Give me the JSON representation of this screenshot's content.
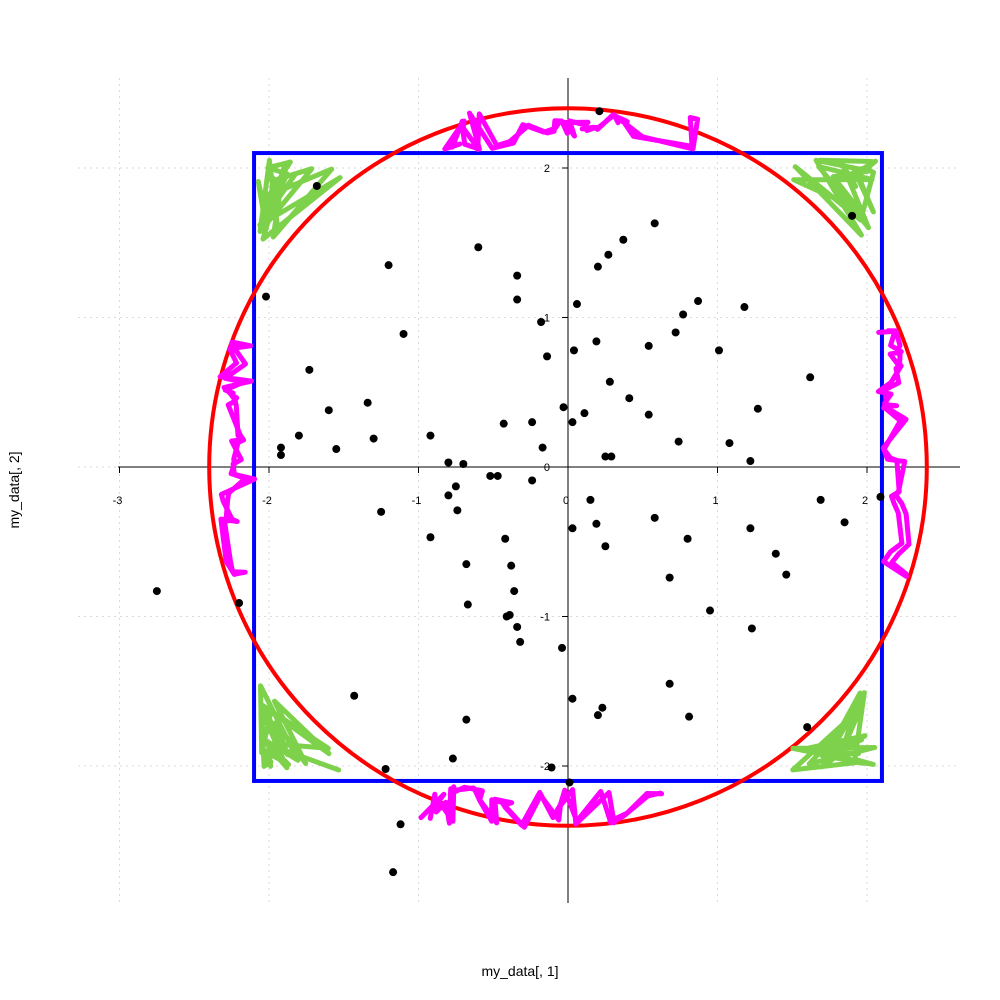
{
  "chart_data": {
    "type": "scatter",
    "title": "",
    "xlabel": "my_data[, 1]",
    "ylabel": "my_data[, 2]",
    "xlim": [
      -3,
      2.6
    ],
    "ylim": [
      -2.9,
      2.6
    ],
    "grid": true,
    "x_ticks": [
      -3,
      -2,
      -1,
      0,
      1,
      2
    ],
    "y_ticks": [
      -2,
      -1,
      0,
      1,
      2
    ],
    "x_tick_labels": [
      "-3",
      "-2",
      "-1",
      "0",
      "1",
      "2"
    ],
    "y_tick_labels": [
      "-2",
      "-1",
      "0",
      "1",
      "2"
    ],
    "colors": {
      "points": "#000000",
      "square": "#0000ff",
      "circle": "#ff0000",
      "corners": "#7ed14a",
      "edges": "#ff00ff",
      "grid": "#d9d9d9"
    },
    "square": {
      "half_side": 2.1
    },
    "circle": {
      "radius": 2.4
    },
    "points": [
      [
        0.21,
        2.38
      ],
      [
        -1.68,
        1.88
      ],
      [
        1.9,
        1.68
      ],
      [
        0.58,
        1.63
      ],
      [
        0.37,
        1.52
      ],
      [
        -0.6,
        1.47
      ],
      [
        0.27,
        1.42
      ],
      [
        0.2,
        1.34
      ],
      [
        -1.2,
        1.35
      ],
      [
        -0.34,
        1.28
      ],
      [
        -2.02,
        1.14
      ],
      [
        -0.34,
        1.12
      ],
      [
        0.06,
        1.09
      ],
      [
        0.87,
        1.11
      ],
      [
        1.18,
        1.07
      ],
      [
        0.77,
        1.02
      ],
      [
        -0.18,
        0.97
      ],
      [
        0.72,
        0.9
      ],
      [
        -1.1,
        0.89
      ],
      [
        0.19,
        0.84
      ],
      [
        0.54,
        0.81
      ],
      [
        0.04,
        0.78
      ],
      [
        1.01,
        0.78
      ],
      [
        -0.14,
        0.74
      ],
      [
        -1.73,
        0.65
      ],
      [
        1.62,
        0.6
      ],
      [
        0.28,
        0.57
      ],
      [
        0.41,
        0.46
      ],
      [
        -1.34,
        0.43
      ],
      [
        1.27,
        0.39
      ],
      [
        -1.6,
        0.38
      ],
      [
        -0.03,
        0.4
      ],
      [
        0.11,
        0.36
      ],
      [
        0.54,
        0.35
      ],
      [
        -0.24,
        0.3
      ],
      [
        -0.43,
        0.29
      ],
      [
        0.03,
        0.3
      ],
      [
        -1.8,
        0.21
      ],
      [
        -0.92,
        0.21
      ],
      [
        -1.3,
        0.19
      ],
      [
        0.74,
        0.17
      ],
      [
        1.08,
        0.16
      ],
      [
        -1.92,
        0.13
      ],
      [
        -1.55,
        0.12
      ],
      [
        -0.17,
        0.13
      ],
      [
        -1.92,
        0.08
      ],
      [
        0.25,
        0.07
      ],
      [
        0.29,
        0.07
      ],
      [
        1.22,
        0.04
      ],
      [
        -0.8,
        0.03
      ],
      [
        -0.7,
        0.02
      ],
      [
        -0.52,
        -0.06
      ],
      [
        -0.47,
        -0.06
      ],
      [
        -0.24,
        -0.09
      ],
      [
        -0.75,
        -0.13
      ],
      [
        -0.8,
        -0.19
      ],
      [
        0.15,
        -0.22
      ],
      [
        2.09,
        -0.2
      ],
      [
        1.69,
        -0.22
      ],
      [
        -0.74,
        -0.29
      ],
      [
        -1.25,
        -0.3
      ],
      [
        0.58,
        -0.34
      ],
      [
        0.19,
        -0.38
      ],
      [
        1.85,
        -0.37
      ],
      [
        0.03,
        -0.41
      ],
      [
        1.22,
        -0.41
      ],
      [
        -0.92,
        -0.47
      ],
      [
        -0.42,
        -0.48
      ],
      [
        0.8,
        -0.48
      ],
      [
        0.25,
        -0.53
      ],
      [
        1.39,
        -0.58
      ],
      [
        -0.68,
        -0.65
      ],
      [
        -0.38,
        -0.66
      ],
      [
        1.46,
        -0.72
      ],
      [
        0.68,
        -0.74
      ],
      [
        -2.75,
        -0.83
      ],
      [
        -0.36,
        -0.83
      ],
      [
        -2.2,
        -0.91
      ],
      [
        -0.67,
        -0.92
      ],
      [
        0.95,
        -0.96
      ],
      [
        -0.39,
        -0.99
      ],
      [
        -0.41,
        -1.0
      ],
      [
        -0.34,
        -1.07
      ],
      [
        1.23,
        -1.08
      ],
      [
        -0.32,
        -1.17
      ],
      [
        -0.04,
        -1.21
      ],
      [
        0.68,
        -1.45
      ],
      [
        -1.43,
        -1.53
      ],
      [
        0.03,
        -1.55
      ],
      [
        0.23,
        -1.61
      ],
      [
        0.2,
        -1.66
      ],
      [
        0.81,
        -1.67
      ],
      [
        -0.68,
        -1.69
      ],
      [
        1.6,
        -1.74
      ],
      [
        -0.77,
        -1.95
      ],
      [
        -1.22,
        -2.02
      ],
      [
        -0.11,
        -2.01
      ],
      [
        0.01,
        -2.11
      ],
      [
        -1.12,
        -2.39
      ],
      [
        -1.17,
        -2.71
      ]
    ]
  }
}
